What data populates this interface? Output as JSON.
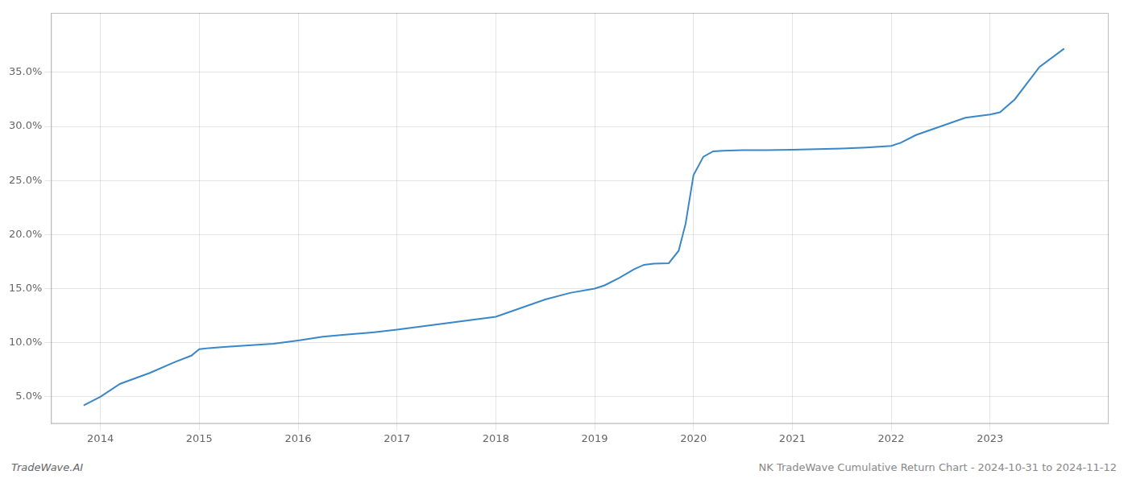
{
  "chart_data": {
    "type": "line",
    "x": [
      2013.83,
      2014.0,
      2014.2,
      2014.5,
      2014.75,
      2014.92,
      2015.0,
      2015.1,
      2015.25,
      2015.5,
      2015.75,
      2016.0,
      2016.25,
      2016.5,
      2016.75,
      2017.0,
      2017.25,
      2017.5,
      2017.75,
      2018.0,
      2018.25,
      2018.5,
      2018.75,
      2019.0,
      2019.1,
      2019.25,
      2019.4,
      2019.5,
      2019.6,
      2019.75,
      2019.85,
      2019.92,
      2020.0,
      2020.1,
      2020.2,
      2020.3,
      2020.5,
      2020.75,
      2021.0,
      2021.25,
      2021.5,
      2021.75,
      2022.0,
      2022.1,
      2022.25,
      2022.5,
      2022.75,
      2023.0,
      2023.1,
      2023.25,
      2023.5,
      2023.75
    ],
    "values": [
      4.2,
      5.0,
      6.2,
      7.2,
      8.2,
      8.8,
      9.4,
      9.5,
      9.6,
      9.75,
      9.9,
      10.2,
      10.55,
      10.75,
      10.95,
      11.2,
      11.5,
      11.8,
      12.1,
      12.4,
      13.2,
      14.0,
      14.6,
      15.0,
      15.3,
      16.0,
      16.8,
      17.2,
      17.3,
      17.35,
      18.5,
      21.0,
      25.5,
      27.2,
      27.7,
      27.75,
      27.8,
      27.8,
      27.85,
      27.9,
      27.95,
      28.05,
      28.2,
      28.5,
      29.2,
      30.0,
      30.8,
      31.1,
      31.3,
      32.5,
      35.5,
      37.2
    ],
    "color": "#3a87c8",
    "xlim": [
      2013.5,
      2024.2
    ],
    "ylim": [
      2.5,
      40.5
    ],
    "xticks": [
      2014,
      2015,
      2016,
      2017,
      2018,
      2019,
      2020,
      2021,
      2022,
      2023
    ],
    "yticks": [
      {
        "value": 5.0,
        "label": "5.0%"
      },
      {
        "value": 10.0,
        "label": "10.0%"
      },
      {
        "value": 15.0,
        "label": "15.0%"
      },
      {
        "value": 20.0,
        "label": "20.0%"
      },
      {
        "value": 25.0,
        "label": "25.0%"
      },
      {
        "value": 30.0,
        "label": "30.0%"
      },
      {
        "value": 35.0,
        "label": "35.0%"
      }
    ],
    "grid": true,
    "annotations": [
      "TradeWave.AI",
      "NK TradeWave Cumulative Return Chart - 2024-10-31 to 2024-11-12"
    ]
  }
}
